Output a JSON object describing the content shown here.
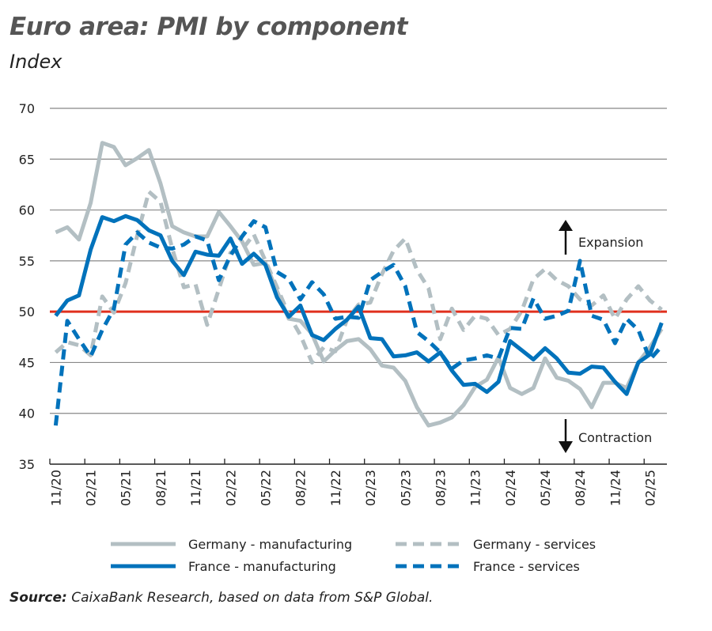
{
  "title": "Euro area: PMI by component",
  "subtitle": "Index",
  "source": {
    "label": "Source:",
    "text": " CaixaBank Research, based on data from S&P Global."
  },
  "colors": {
    "germany": "#b3bfc3",
    "france": "#0072bb",
    "threshold": "#e0301e",
    "grid": "#888888"
  },
  "chart_data": {
    "type": "line",
    "title": "Euro area: PMI by component",
    "ylabel": "Index",
    "ylim": [
      35,
      70
    ],
    "yticks": [
      35,
      40,
      45,
      50,
      55,
      60,
      65,
      70
    ],
    "grid": true,
    "threshold": 50,
    "legend_position": "bottom",
    "x_labels": [
      "11/20",
      "02/21",
      "05/21",
      "08/21",
      "11/21",
      "02/22",
      "05/22",
      "08/22",
      "11/22",
      "02/23",
      "05/23",
      "08/23",
      "11/23",
      "02/24",
      "05/24",
      "08/24",
      "11/24",
      "02/25"
    ],
    "x": [
      "11/20",
      "12/20",
      "01/21",
      "02/21",
      "03/21",
      "04/21",
      "05/21",
      "06/21",
      "07/21",
      "08/21",
      "09/21",
      "10/21",
      "11/21",
      "12/21",
      "01/22",
      "02/22",
      "03/22",
      "04/22",
      "05/22",
      "06/22",
      "07/22",
      "08/22",
      "09/22",
      "10/22",
      "11/22",
      "12/22",
      "01/23",
      "02/23",
      "03/23",
      "04/23",
      "05/23",
      "06/23",
      "07/23",
      "08/23",
      "09/23",
      "10/23",
      "11/23",
      "12/23",
      "01/24",
      "02/24",
      "03/24",
      "04/24",
      "05/24",
      "06/24",
      "07/24",
      "08/24",
      "09/24",
      "10/24",
      "11/24",
      "12/24",
      "01/25",
      "02/25",
      "03/25"
    ],
    "annotations": [
      {
        "text": "Expansion",
        "direction": "up"
      },
      {
        "text": "Contraction",
        "direction": "down"
      }
    ],
    "series": [
      {
        "name": "Germany - manufacturing",
        "color": "#b3bfc3",
        "style": "solid",
        "values": [
          57.8,
          58.3,
          57.1,
          60.7,
          66.6,
          66.2,
          64.4,
          65.1,
          65.9,
          62.6,
          58.4,
          57.8,
          57.4,
          57.4,
          59.8,
          58.4,
          56.9,
          54.6,
          54.8,
          52.0,
          49.3,
          49.1,
          47.8,
          45.1,
          46.2,
          47.1,
          47.3,
          46.3,
          44.7,
          44.5,
          43.2,
          40.6,
          38.8,
          39.1,
          39.6,
          40.8,
          42.6,
          43.3,
          45.5,
          42.5,
          41.9,
          42.5,
          45.4,
          43.5,
          43.2,
          42.4,
          40.6,
          43.0,
          43.0,
          42.5,
          45.0,
          46.5,
          48.3
        ]
      },
      {
        "name": "Germany - services",
        "color": "#b3bfc3",
        "style": "dashed",
        "values": [
          46.0,
          47.0,
          46.7,
          45.7,
          51.5,
          49.9,
          52.8,
          57.5,
          61.8,
          60.8,
          56.2,
          52.4,
          52.7,
          48.7,
          52.2,
          55.8,
          56.1,
          57.6,
          55.0,
          52.4,
          49.7,
          47.7,
          45.0,
          46.5,
          46.1,
          49.2,
          50.7,
          50.9,
          53.7,
          56.0,
          57.2,
          54.1,
          52.3,
          47.3,
          50.3,
          48.2,
          49.6,
          49.3,
          47.7,
          48.3,
          50.1,
          53.2,
          54.2,
          53.1,
          52.5,
          51.2,
          50.6,
          51.6,
          49.3,
          51.2,
          52.5,
          51.1,
          50.2
        ]
      },
      {
        "name": "France - manufacturing",
        "color": "#0072bb",
        "style": "solid",
        "values": [
          49.6,
          51.1,
          51.6,
          56.1,
          59.3,
          58.9,
          59.4,
          59.0,
          58.0,
          57.5,
          55.0,
          53.6,
          55.9,
          55.6,
          55.5,
          57.2,
          54.7,
          55.7,
          54.6,
          51.4,
          49.5,
          50.6,
          47.7,
          47.2,
          48.3,
          49.2,
          50.5,
          47.4,
          47.3,
          45.6,
          45.7,
          46.0,
          45.1,
          46.0,
          44.2,
          42.8,
          42.9,
          42.1,
          43.1,
          47.1,
          46.2,
          45.3,
          46.4,
          45.4,
          44.0,
          43.9,
          44.6,
          44.5,
          43.1,
          41.9,
          45.0,
          45.8,
          48.9
        ]
      },
      {
        "name": "France - services",
        "color": "#0072bb",
        "style": "dashed",
        "values": [
          38.8,
          49.1,
          47.3,
          45.6,
          48.2,
          50.3,
          56.6,
          57.8,
          56.8,
          56.3,
          56.2,
          56.6,
          57.4,
          57.0,
          53.1,
          55.5,
          57.4,
          58.9,
          58.3,
          53.9,
          53.2,
          51.2,
          52.9,
          51.7,
          49.3,
          49.5,
          49.4,
          53.1,
          53.9,
          54.6,
          52.5,
          48.0,
          47.1,
          46.0,
          44.4,
          45.2,
          45.4,
          45.7,
          45.4,
          48.4,
          48.3,
          51.3,
          49.3,
          49.6,
          50.1,
          55.0,
          49.6,
          49.2,
          46.9,
          49.3,
          48.2,
          45.3,
          46.6
        ]
      }
    ]
  }
}
